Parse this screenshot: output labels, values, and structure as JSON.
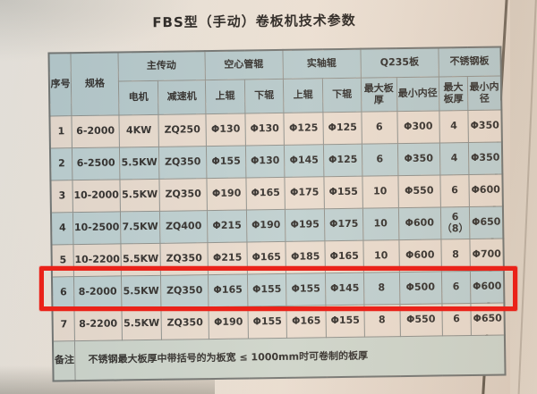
{
  "page": {
    "title": "FBS型（手动）卷板机技术参数"
  },
  "colors": {
    "highlight_red": "#ea2219",
    "header_cell_blue": "#b4c8cb",
    "row_blue": "#bccfd1",
    "row_cream": "#e9dbce",
    "remarks_row": "#ccd4cb",
    "paper": "#ece2d7"
  },
  "table": {
    "header": {
      "col_serial": "序号",
      "col_spec": "规格",
      "group_main_drive": "主传动",
      "group_hollow_roller": "空心管辊",
      "group_solid_roller": "实轴辊",
      "group_q235": "Q235板",
      "group_stainless": "不锈钢板",
      "col_motor": "电机",
      "col_reducer": "减速机",
      "col_upper_hollow": "上辊",
      "col_lower_hollow": "下辊",
      "col_upper_solid": "上辊",
      "col_lower_solid": "下辊",
      "col_q235_max_thickness": "最大板厚",
      "col_q235_min_diameter": "最小内径",
      "col_ss_max_thickness": "最大板厚",
      "col_ss_min_diameter": "最小内径"
    },
    "rows": [
      [
        "1",
        "6-2000",
        "4KW",
        "ZQ250",
        "Φ130",
        "Φ130",
        "Φ125",
        "Φ125",
        "6",
        "Φ300",
        "4",
        "Φ350"
      ],
      [
        "2",
        "6-2500",
        "5.5KW",
        "ZQ350",
        "Φ155",
        "Φ130",
        "Φ145",
        "Φ125",
        "6",
        "Φ350",
        "4",
        "Φ350"
      ],
      [
        "3",
        "10-2000",
        "5.5KW",
        "ZQ350",
        "Φ190",
        "Φ165",
        "Φ175",
        "Φ155",
        "10",
        "Φ550",
        "6",
        "Φ600"
      ],
      [
        "4",
        "10-2500",
        "7.5KW",
        "ZQ400",
        "Φ215",
        "Φ190",
        "Φ195",
        "Φ175",
        "10",
        "Φ600",
        "6（8）",
        "Φ650"
      ],
      [
        "5",
        "10-2200",
        "5.5KW",
        "ZQ350",
        "Φ215",
        "Φ165",
        "Φ185",
        "Φ165",
        "10",
        "Φ600",
        "8",
        "Φ700"
      ],
      [
        "6",
        "8-2000",
        "5.5KW",
        "ZQ350",
        "Φ165",
        "Φ155",
        "Φ155",
        "Φ145",
        "8",
        "Φ500",
        "6",
        "Φ600"
      ],
      [
        "7",
        "8-2200",
        "5.5KW",
        "ZQ350",
        "Φ190",
        "Φ155",
        "Φ165",
        "Φ155",
        "8",
        "Φ550",
        "6",
        "Φ650"
      ]
    ],
    "highlighted_row_serial": "6",
    "remarks": {
      "label": "备注",
      "text": "不锈钢最大板厚中带括号的为板宽 ≤ 1000mm时可卷制的板厚"
    }
  }
}
